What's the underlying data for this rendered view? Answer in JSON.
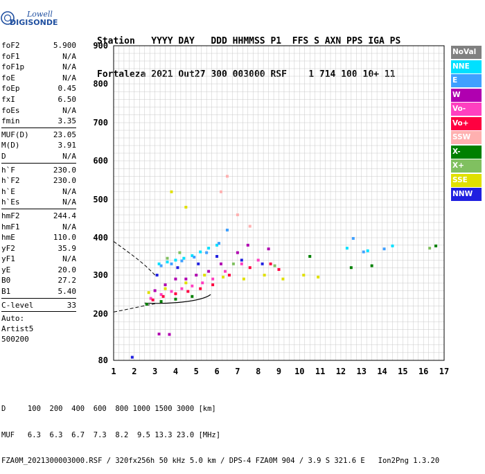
{
  "logo": {
    "line1": "Lowell",
    "line2": "DIGISONDE"
  },
  "header": {
    "line1": "Station   YYYY DAY   DDD HHMMSS P1  FFS S AXN PPS IGA PS",
    "line2": "Fortaleza 2021 Out27 300 003000 RSF    1 714 100 10+ 11"
  },
  "params": {
    "group1": [
      {
        "label": "foF2",
        "value": "5.900"
      },
      {
        "label": "foF1",
        "value": "N/A"
      },
      {
        "label": "foF1p",
        "value": "N/A"
      },
      {
        "label": "foE",
        "value": "N/A"
      },
      {
        "label": "foEp",
        "value": "0.45"
      },
      {
        "label": "fxI",
        "value": "6.50"
      },
      {
        "label": "foEs",
        "value": "N/A"
      },
      {
        "label": "fmin",
        "value": "3.35"
      }
    ],
    "group2": [
      {
        "label": "MUF(D)",
        "value": "23.05"
      },
      {
        "label": "M(D)",
        "value": "3.91"
      },
      {
        "label": "D",
        "value": "N/A"
      }
    ],
    "group3": [
      {
        "label": "h`F",
        "value": "230.0"
      },
      {
        "label": "h`F2",
        "value": "230.0"
      },
      {
        "label": "h`E",
        "value": "N/A"
      },
      {
        "label": "h`Es",
        "value": "N/A"
      }
    ],
    "group4": [
      {
        "label": "hmF2",
        "value": "244.4"
      },
      {
        "label": "hmF1",
        "value": "N/A"
      },
      {
        "label": "hmE",
        "value": "110.0"
      },
      {
        "label": "yF2",
        "value": "35.9"
      },
      {
        "label": "yF1",
        "value": "N/A"
      },
      {
        "label": "yE",
        "value": "20.0"
      },
      {
        "label": "B0",
        "value": "27.2"
      },
      {
        "label": "B1",
        "value": "5.40"
      }
    ],
    "clevel": {
      "label": "C-level",
      "value": "33"
    },
    "auto": [
      "Auto:",
      "Artist5",
      "500200"
    ]
  },
  "legend": [
    {
      "label": "NoVal",
      "color": "#808080"
    },
    {
      "label": "NNE",
      "color": "#00e0ff"
    },
    {
      "label": "E",
      "color": "#3fa0ff"
    },
    {
      "label": "W",
      "color": "#b000b0"
    },
    {
      "label": "Vo-",
      "color": "#ff40c0"
    },
    {
      "label": "Vo+",
      "color": "#ff0040"
    },
    {
      "label": "SSW",
      "color": "#ffb0b0"
    },
    {
      "label": "X-",
      "color": "#008000"
    },
    {
      "label": "X+",
      "color": "#80c060"
    },
    {
      "label": "SSE",
      "color": "#e0e000"
    },
    {
      "label": "NNW",
      "color": "#2020e0"
    }
  ],
  "footer": {
    "line1": "D     100  200  400  600  800 1000 1500 3000 [km]",
    "line2": "MUF   6.3  6.3  6.7  7.3  8.2  9.5 13.3 23.0 [MHz]",
    "line3": "FZA0M_2021300003000.RSF / 320fx256h 50 kHz 5.0 km / DPS-4 FZA0M 904 / 3.9 S 321.6 E   Ion2Png 1.3.20"
  },
  "chart_data": {
    "type": "scatter",
    "xlim": [
      1,
      17
    ],
    "ylim": [
      80,
      900
    ],
    "xticks": [
      1,
      2,
      3,
      4,
      5,
      6,
      7,
      8,
      9,
      10,
      11,
      12,
      13,
      14,
      15,
      16,
      17
    ],
    "yticks": [
      80,
      200,
      300,
      400,
      500,
      600,
      700,
      800,
      900
    ],
    "grid": true,
    "series": [
      {
        "name": "NNE",
        "color": "#00e0ff",
        "points": [
          [
            3.2,
            330
          ],
          [
            3.6,
            335
          ],
          [
            4.0,
            340
          ],
          [
            4.4,
            345
          ],
          [
            4.8,
            352
          ],
          [
            5.2,
            362
          ],
          [
            5.6,
            372
          ],
          [
            6.0,
            380
          ],
          [
            12.3,
            372
          ],
          [
            13.3,
            365
          ],
          [
            14.5,
            378
          ]
        ]
      },
      {
        "name": "E",
        "color": "#3fa0ff",
        "points": [
          [
            3.3,
            325
          ],
          [
            3.8,
            330
          ],
          [
            4.3,
            338
          ],
          [
            4.9,
            348
          ],
          [
            5.5,
            360
          ],
          [
            6.1,
            385
          ],
          [
            6.5,
            420
          ],
          [
            12.6,
            398
          ],
          [
            13.1,
            362
          ],
          [
            14.1,
            370
          ]
        ]
      },
      {
        "name": "W",
        "color": "#b000b0",
        "points": [
          [
            3.0,
            260
          ],
          [
            3.5,
            275
          ],
          [
            4.0,
            290
          ],
          [
            4.5,
            290
          ],
          [
            5.0,
            300
          ],
          [
            5.6,
            310
          ],
          [
            6.2,
            330
          ],
          [
            7.0,
            360
          ],
          [
            7.5,
            380
          ],
          [
            8.5,
            370
          ],
          [
            3.2,
            148
          ],
          [
            3.7,
            147
          ]
        ]
      },
      {
        "name": "Vo-",
        "color": "#ff40c0",
        "points": [
          [
            2.8,
            240
          ],
          [
            3.3,
            250
          ],
          [
            3.8,
            258
          ],
          [
            4.3,
            265
          ],
          [
            4.8,
            272
          ],
          [
            5.3,
            280
          ],
          [
            5.8,
            290
          ],
          [
            6.4,
            310
          ],
          [
            7.2,
            330
          ],
          [
            8.0,
            340
          ]
        ]
      },
      {
        "name": "Vo+",
        "color": "#ff0040",
        "points": [
          [
            2.9,
            236
          ],
          [
            3.4,
            245
          ],
          [
            4.0,
            252
          ],
          [
            4.6,
            258
          ],
          [
            5.2,
            265
          ],
          [
            5.8,
            275
          ],
          [
            6.6,
            300
          ],
          [
            7.6,
            320
          ],
          [
            8.6,
            330
          ],
          [
            9.0,
            315
          ]
        ]
      },
      {
        "name": "SSW",
        "color": "#ffb0b0",
        "points": [
          [
            6.2,
            520
          ],
          [
            6.5,
            560
          ],
          [
            7.0,
            460
          ],
          [
            7.6,
            430
          ]
        ]
      },
      {
        "name": "X-",
        "color": "#008000",
        "points": [
          [
            2.6,
            225
          ],
          [
            3.3,
            232
          ],
          [
            4.0,
            238
          ],
          [
            4.8,
            245
          ],
          [
            10.5,
            350
          ],
          [
            12.5,
            320
          ],
          [
            13.5,
            325
          ],
          [
            16.6,
            378
          ]
        ]
      },
      {
        "name": "X+",
        "color": "#80c060",
        "points": [
          [
            3.6,
            345
          ],
          [
            4.2,
            360
          ],
          [
            6.8,
            330
          ],
          [
            8.8,
            325
          ],
          [
            16.3,
            372
          ]
        ]
      },
      {
        "name": "SSE",
        "color": "#e0e000",
        "points": [
          [
            2.7,
            255
          ],
          [
            3.5,
            265
          ],
          [
            4.5,
            280
          ],
          [
            5.4,
            300
          ],
          [
            6.3,
            295
          ],
          [
            7.3,
            290
          ],
          [
            8.3,
            300
          ],
          [
            9.2,
            290
          ],
          [
            10.2,
            300
          ],
          [
            10.9,
            295
          ],
          [
            3.8,
            520
          ],
          [
            4.5,
            480
          ]
        ]
      },
      {
        "name": "NNW",
        "color": "#2020e0",
        "points": [
          [
            1.9,
            88
          ],
          [
            3.1,
            300
          ],
          [
            4.1,
            320
          ],
          [
            5.1,
            330
          ],
          [
            6.0,
            350
          ],
          [
            7.2,
            340
          ],
          [
            8.2,
            330
          ]
        ]
      }
    ]
  }
}
